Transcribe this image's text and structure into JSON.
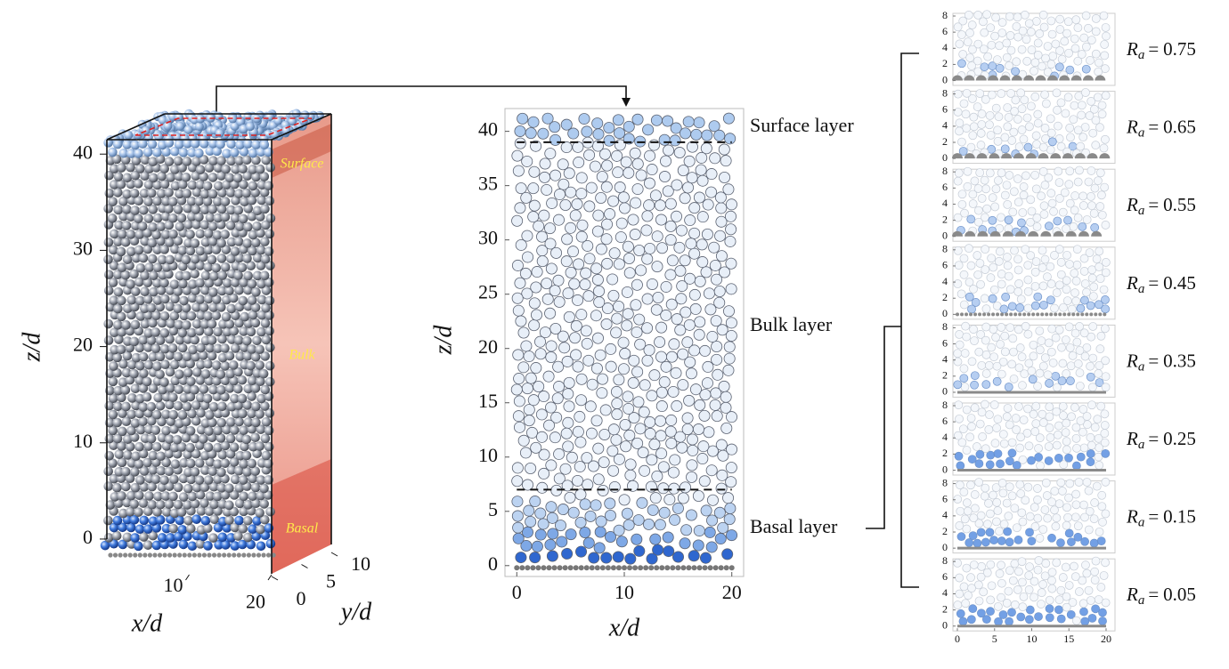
{
  "chart_data": [
    {
      "type": "3d-scatter",
      "zlabel": "z/d",
      "xlabel": "x/d",
      "ylabel": "y/d",
      "zlim": [
        -1.3,
        41.5
      ],
      "zticks": [
        0,
        10,
        20,
        30,
        40
      ],
      "xlim": [
        0,
        20
      ],
      "xticks": [
        10,
        20
      ],
      "ylim": [
        0,
        10
      ],
      "yticks": [
        0,
        5,
        10
      ],
      "regions": [
        "Surface",
        "Bulk",
        "Basal"
      ]
    },
    {
      "type": "scatter",
      "xlabel": "x/d",
      "ylabel": "z/d",
      "xlim": [
        -1.1,
        21.1
      ],
      "xticks": [
        0,
        10,
        20
      ],
      "ylim": [
        -1,
        42.1
      ],
      "yticks": [
        0,
        5,
        10,
        15,
        20,
        25,
        30,
        35,
        40
      ],
      "layer_boundaries": [
        7,
        39
      ],
      "annotations": [
        "Surface layer",
        "Bulk layer",
        "Basal layer"
      ]
    },
    {
      "type": "scatter-grid",
      "symbol": "R",
      "subscript": "a",
      "relation": "=",
      "xlim": [
        -0.6,
        21.2
      ],
      "xticks": [
        0,
        5,
        10,
        15,
        20
      ],
      "ylim": [
        -0.6,
        8
      ],
      "yticks": [
        0,
        2,
        4,
        6,
        8
      ],
      "panels": [
        0.75,
        0.65,
        0.55,
        0.45,
        0.35,
        0.25,
        0.15,
        0.05
      ]
    }
  ]
}
